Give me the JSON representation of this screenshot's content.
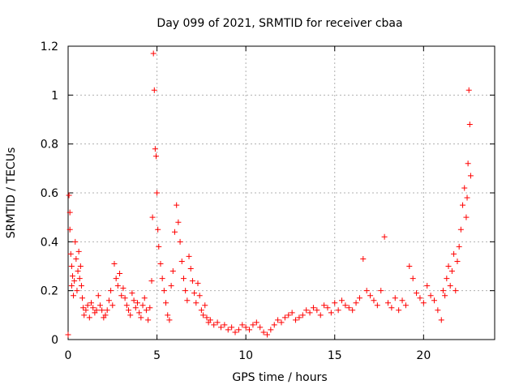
{
  "chart_data": {
    "type": "scatter",
    "title": "Day 099 of 2021, SRMTID for receiver cbaa",
    "xlabel": "GPS time / hours",
    "ylabel": "SRMTID / TECUs",
    "xlim": [
      0,
      24
    ],
    "ylim": [
      0,
      1.2
    ],
    "xticks": [
      0,
      5,
      10,
      15,
      20
    ],
    "xtick_labels": [
      "0",
      "5",
      "10",
      "15",
      "20"
    ],
    "yticks": [
      0,
      0.2,
      0.4,
      0.6,
      0.8,
      1,
      1.2
    ],
    "ytick_labels": [
      "0",
      "0.2",
      "0.4",
      "0.6",
      "0.8",
      "1",
      "1.2"
    ],
    "grid": true,
    "marker": "+",
    "color": "#ff0000",
    "series": [
      {
        "name": "SRMTID",
        "x": [
          0.0,
          0.05,
          0.1,
          0.1,
          0.15,
          0.2,
          0.2,
          0.25,
          0.3,
          0.35,
          0.4,
          0.45,
          0.5,
          0.55,
          0.6,
          0.65,
          0.7,
          0.75,
          0.8,
          0.85,
          0.9,
          1.0,
          1.1,
          1.2,
          1.3,
          1.4,
          1.5,
          1.6,
          1.7,
          1.8,
          1.9,
          2.0,
          2.1,
          2.2,
          2.3,
          2.4,
          2.5,
          2.6,
          2.7,
          2.8,
          2.9,
          3.0,
          3.1,
          3.2,
          3.3,
          3.4,
          3.5,
          3.6,
          3.7,
          3.8,
          3.9,
          4.0,
          4.1,
          4.2,
          4.3,
          4.4,
          4.5,
          4.6,
          4.7,
          4.75,
          4.8,
          4.85,
          4.9,
          4.95,
          5.0,
          5.05,
          5.1,
          5.2,
          5.3,
          5.4,
          5.5,
          5.6,
          5.7,
          5.8,
          5.9,
          6.0,
          6.1,
          6.2,
          6.3,
          6.4,
          6.5,
          6.6,
          6.7,
          6.8,
          6.9,
          7.0,
          7.1,
          7.2,
          7.3,
          7.4,
          7.5,
          7.6,
          7.7,
          7.8,
          7.9,
          8.0,
          8.2,
          8.4,
          8.6,
          8.8,
          9.0,
          9.2,
          9.4,
          9.6,
          9.8,
          10.0,
          10.2,
          10.4,
          10.6,
          10.8,
          11.0,
          11.2,
          11.4,
          11.6,
          11.8,
          12.0,
          12.2,
          12.4,
          12.6,
          12.8,
          13.0,
          13.2,
          13.4,
          13.6,
          13.8,
          14.0,
          14.2,
          14.4,
          14.6,
          14.8,
          15.0,
          15.2,
          15.4,
          15.6,
          15.8,
          16.0,
          16.2,
          16.4,
          16.6,
          16.8,
          17.0,
          17.2,
          17.4,
          17.6,
          17.8,
          18.0,
          18.2,
          18.4,
          18.6,
          18.8,
          19.0,
          19.2,
          19.4,
          19.6,
          19.8,
          20.0,
          20.2,
          20.4,
          20.6,
          20.8,
          21.0,
          21.1,
          21.2,
          21.3,
          21.4,
          21.5,
          21.6,
          21.7,
          21.8,
          21.9,
          22.0,
          22.1,
          22.2,
          22.3,
          22.4,
          22.45,
          22.5,
          22.55,
          22.6,
          22.65
        ],
        "y": [
          0.02,
          0.59,
          0.52,
          0.45,
          0.35,
          0.3,
          0.22,
          0.26,
          0.18,
          0.24,
          0.4,
          0.33,
          0.2,
          0.28,
          0.36,
          0.25,
          0.3,
          0.22,
          0.17,
          0.13,
          0.1,
          0.12,
          0.14,
          0.09,
          0.15,
          0.13,
          0.11,
          0.12,
          0.18,
          0.14,
          0.12,
          0.09,
          0.1,
          0.12,
          0.16,
          0.2,
          0.14,
          0.31,
          0.25,
          0.22,
          0.27,
          0.18,
          0.21,
          0.17,
          0.14,
          0.12,
          0.1,
          0.19,
          0.16,
          0.13,
          0.15,
          0.11,
          0.09,
          0.14,
          0.17,
          0.12,
          0.08,
          0.13,
          0.24,
          0.5,
          1.17,
          1.02,
          0.78,
          0.75,
          0.6,
          0.45,
          0.38,
          0.31,
          0.25,
          0.2,
          0.15,
          0.1,
          0.08,
          0.22,
          0.28,
          0.44,
          0.55,
          0.48,
          0.4,
          0.32,
          0.25,
          0.2,
          0.16,
          0.34,
          0.29,
          0.24,
          0.19,
          0.15,
          0.23,
          0.18,
          0.12,
          0.1,
          0.14,
          0.09,
          0.07,
          0.08,
          0.06,
          0.07,
          0.05,
          0.06,
          0.04,
          0.05,
          0.03,
          0.04,
          0.06,
          0.05,
          0.04,
          0.06,
          0.07,
          0.05,
          0.03,
          0.02,
          0.04,
          0.06,
          0.08,
          0.07,
          0.09,
          0.1,
          0.11,
          0.08,
          0.09,
          0.1,
          0.12,
          0.11,
          0.13,
          0.12,
          0.1,
          0.14,
          0.13,
          0.11,
          0.15,
          0.12,
          0.16,
          0.14,
          0.13,
          0.12,
          0.15,
          0.17,
          0.33,
          0.2,
          0.18,
          0.16,
          0.14,
          0.2,
          0.42,
          0.15,
          0.13,
          0.17,
          0.12,
          0.16,
          0.14,
          0.3,
          0.25,
          0.19,
          0.17,
          0.15,
          0.22,
          0.18,
          0.16,
          0.12,
          0.08,
          0.2,
          0.18,
          0.25,
          0.3,
          0.22,
          0.28,
          0.35,
          0.2,
          0.32,
          0.38,
          0.45,
          0.55,
          0.62,
          0.5,
          0.58,
          0.72,
          1.02,
          0.88,
          0.67
        ]
      }
    ]
  }
}
